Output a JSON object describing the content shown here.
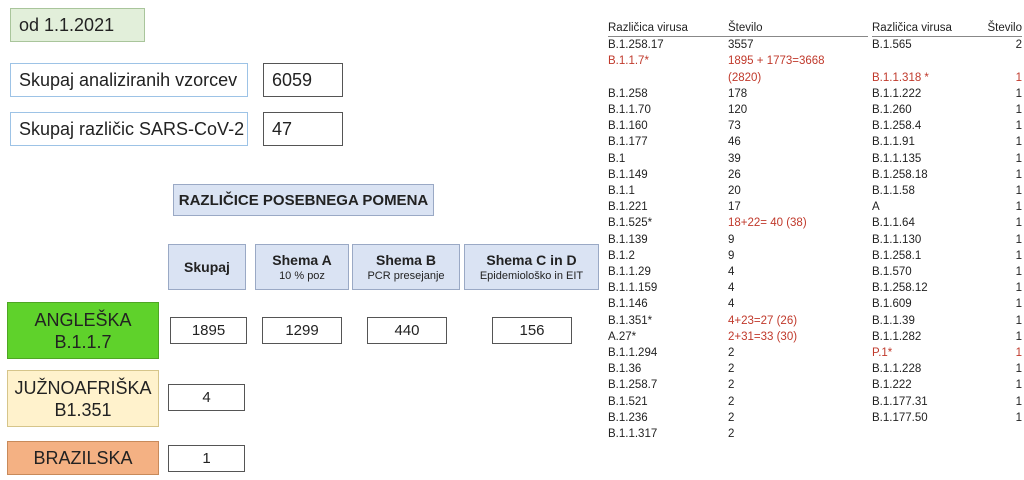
{
  "date_label": "od 1.1.2021",
  "stats": [
    {
      "label": "Skupaj analiziranih vzorcev",
      "value": "6059"
    },
    {
      "label": "Skupaj različic SARS-CoV-2",
      "value": "47"
    }
  ],
  "section_title": "RAZLIČICE POSEBNEGA POMENA",
  "columns": [
    {
      "title": "Skupaj",
      "subtitle": ""
    },
    {
      "title": "Shema A",
      "subtitle": "10 % poz"
    },
    {
      "title": "Shema B",
      "subtitle": "PCR presejanje"
    },
    {
      "title": "Shema C in D",
      "subtitle": "Epidemiološko  in EIT"
    }
  ],
  "variants": [
    {
      "name_line1": "ANGLEŠKA",
      "name_line2": "B.1.1.7",
      "color": "#5fd22b",
      "values": [
        "1895",
        "1299",
        "440",
        "156"
      ]
    },
    {
      "name_line1": "JUŽNOAFRIŠKA",
      "name_line2": "B1.351",
      "color": "#fff2cc",
      "values": [
        "4"
      ]
    },
    {
      "name_line1": "BRAZILSKA",
      "name_line2": "",
      "color": "#f4b183",
      "values": [
        "1"
      ]
    }
  ],
  "table1": {
    "headers": [
      "Različica virusa",
      "Število"
    ],
    "rows": [
      {
        "name": "B.1.258.17",
        "value": "3557",
        "red": false
      },
      {
        "name": "B.1.1.7*",
        "value": "1895 + 1773=3668",
        "value2": "(2820)",
        "red": true
      },
      {
        "name": "B.1.258",
        "value": "178",
        "red": false
      },
      {
        "name": "B.1.1.70",
        "value": "120",
        "red": false
      },
      {
        "name": "B.1.160",
        "value": "73",
        "red": false
      },
      {
        "name": "B.1.177",
        "value": "46",
        "red": false
      },
      {
        "name": "B.1",
        "value": "39",
        "red": false
      },
      {
        "name": "B.1.149",
        "value": "26",
        "red": false
      },
      {
        "name": "B.1.1",
        "value": "20",
        "red": false
      },
      {
        "name": "B.1.221",
        "value": "17",
        "red": false
      },
      {
        "name": "B.1.525*",
        "value": "18+22= 40 (38)",
        "red": true,
        "red_value_only": true
      },
      {
        "name": "B.1.139",
        "value": "9",
        "red": false
      },
      {
        "name": "B.1.2",
        "value": "9",
        "red": false
      },
      {
        "name": "B.1.1.29",
        "value": "4",
        "red": false
      },
      {
        "name": "B.1.1.159",
        "value": "4",
        "red": false
      },
      {
        "name": "B.1.146",
        "value": "4",
        "red": false
      },
      {
        "name": "B.1.351*",
        "value": "4+23=27 (26)",
        "red": true,
        "red_value_only": true
      },
      {
        "name": "A.27*",
        "value": "2+31=33 (30)",
        "red": true,
        "red_value_only": true
      },
      {
        "name": "B.1.1.294",
        "value": "2",
        "red": false
      },
      {
        "name": "B.1.36",
        "value": "2",
        "red": false
      },
      {
        "name": "B.1.258.7",
        "value": "2",
        "red": false
      },
      {
        "name": "B.1.521",
        "value": "2",
        "red": false
      },
      {
        "name": "B.1.236",
        "value": "2",
        "red": false
      },
      {
        "name": "B.1.1.317",
        "value": "2",
        "red": false
      }
    ]
  },
  "table2": {
    "headers": [
      "Različica virusa",
      "Število"
    ],
    "rows": [
      {
        "name": "B.1.565",
        "value": "2",
        "red": false
      },
      {
        "name": "",
        "value": "",
        "red": false
      },
      {
        "name": "B.1.1.318 *",
        "value": "1",
        "red": true
      },
      {
        "name": "B.1.1.222",
        "value": "1",
        "red": false
      },
      {
        "name": "B.1.260",
        "value": "1",
        "red": false
      },
      {
        "name": "B.1.258.4",
        "value": "1",
        "red": false
      },
      {
        "name": "B.1.1.91",
        "value": "1",
        "red": false
      },
      {
        "name": "B.1.1.135",
        "value": "1",
        "red": false
      },
      {
        "name": "B.1.258.18",
        "value": "1",
        "red": false
      },
      {
        "name": "B.1.1.58",
        "value": "1",
        "red": false
      },
      {
        "name": "A",
        "value": "1",
        "red": false
      },
      {
        "name": "B.1.1.64",
        "value": "1",
        "red": false
      },
      {
        "name": "B.1.1.130",
        "value": "1",
        "red": false
      },
      {
        "name": "B.1.258.1",
        "value": "1",
        "red": false
      },
      {
        "name": "B.1.570",
        "value": "1",
        "red": false
      },
      {
        "name": "B.1.258.12",
        "value": "1",
        "red": false
      },
      {
        "name": "B.1.609",
        "value": "1",
        "red": false
      },
      {
        "name": "B.1.1.39",
        "value": "1",
        "red": false
      },
      {
        "name": "B.1.1.282",
        "value": "1",
        "red": false
      },
      {
        "name": "P.1*",
        "value": "1",
        "red": true
      },
      {
        "name": "B.1.1.228",
        "value": "1",
        "red": false
      },
      {
        "name": "B.1.222",
        "value": "1",
        "red": false
      },
      {
        "name": "B.1.177.31",
        "value": "1",
        "red": false
      },
      {
        "name": "B.1.177.50",
        "value": "1",
        "red": false
      }
    ]
  }
}
